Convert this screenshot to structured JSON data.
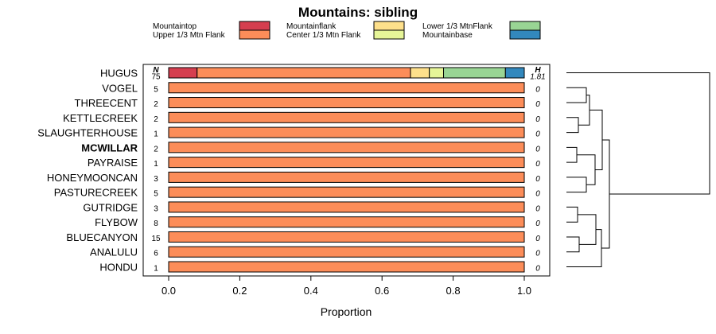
{
  "chart_data": {
    "type": "bar",
    "orientation": "horizontal",
    "stacked": true,
    "title": "Mountains: sibling",
    "xlabel": "Proportion",
    "ylabel": "",
    "xlim": [
      0,
      1
    ],
    "xticks": [
      "0.0",
      "0.2",
      "0.4",
      "0.6",
      "0.8",
      "1.0"
    ],
    "legend_position": "top",
    "column_headers": {
      "n": "N",
      "h": "H"
    },
    "categories": [
      {
        "key": "mountaintop",
        "label": "Mountaintop",
        "color": "#D53E4F"
      },
      {
        "key": "upper",
        "label": "Upper 1/3 Mtn Flank",
        "color": "#FC8D59"
      },
      {
        "key": "mountainflank",
        "label": "Mountainflank",
        "color": "#FEE08B"
      },
      {
        "key": "center",
        "label": "Center 1/3 Mtn Flank",
        "color": "#E6F598"
      },
      {
        "key": "lower",
        "label": "Lower 1/3 MtnFlank",
        "color": "#99D594"
      },
      {
        "key": "mountainbase",
        "label": "Mountainbase",
        "color": "#3288BD"
      }
    ],
    "rows": [
      {
        "label": "HUGUS",
        "n": "75",
        "h": "1.81",
        "bold": false,
        "values": {
          "mountaintop": 0.08,
          "upper": 0.6,
          "mountainflank": 0.053,
          "center": 0.04,
          "lower": 0.174,
          "mountainbase": 0.053
        }
      },
      {
        "label": "VOGEL",
        "n": "5",
        "h": "0",
        "bold": false,
        "values": {
          "upper": 1
        }
      },
      {
        "label": "THREECENT",
        "n": "2",
        "h": "0",
        "bold": false,
        "values": {
          "upper": 1
        }
      },
      {
        "label": "KETTLECREEK",
        "n": "2",
        "h": "0",
        "bold": false,
        "values": {
          "upper": 1
        }
      },
      {
        "label": "SLAUGHTERHOUSE",
        "n": "1",
        "h": "0",
        "bold": false,
        "values": {
          "upper": 1
        }
      },
      {
        "label": "MCWILLAR",
        "n": "2",
        "h": "0",
        "bold": true,
        "values": {
          "upper": 1
        }
      },
      {
        "label": "PAYRAISE",
        "n": "1",
        "h": "0",
        "bold": false,
        "values": {
          "upper": 1
        }
      },
      {
        "label": "HONEYMOONCAN",
        "n": "3",
        "h": "0",
        "bold": false,
        "values": {
          "upper": 1
        }
      },
      {
        "label": "PASTURECREEK",
        "n": "5",
        "h": "0",
        "bold": false,
        "values": {
          "upper": 1
        }
      },
      {
        "label": "GUTRIDGE",
        "n": "3",
        "h": "0",
        "bold": false,
        "values": {
          "upper": 1
        }
      },
      {
        "label": "FLYBOW",
        "n": "8",
        "h": "0",
        "bold": false,
        "values": {
          "upper": 1
        }
      },
      {
        "label": "BLUECANYON",
        "n": "15",
        "h": "0",
        "bold": false,
        "values": {
          "upper": 1
        }
      },
      {
        "label": "ANALULU",
        "n": "6",
        "h": "0",
        "bold": false,
        "values": {
          "upper": 1
        }
      },
      {
        "label": "HONDU",
        "n": "1",
        "h": "0",
        "bold": false,
        "values": {
          "upper": 1
        }
      }
    ]
  }
}
